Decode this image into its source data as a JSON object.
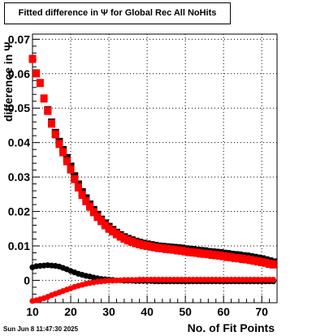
{
  "chart_data": {
    "type": "scatter",
    "title": "Fitted difference in  Ψ  for Global Rec All NoHits",
    "xlabel": "No. of Fit Points",
    "ylabel": "difference in  Ψ",
    "xlim": [
      10,
      74
    ],
    "ylim": [
      -0.0065,
      0.0715
    ],
    "grid": true,
    "x_ticks": [
      10,
      20,
      30,
      40,
      50,
      60,
      70
    ],
    "y_ticks": [
      0,
      0.01,
      0.02,
      0.03,
      0.04,
      0.05,
      0.06,
      0.07
    ],
    "x_tick_labels": [
      "10",
      "20",
      "30",
      "40",
      "50",
      "60",
      "70"
    ],
    "y_tick_labels": [
      "0",
      "0.01",
      "0.02",
      "0.03",
      "0.04",
      "0.05",
      "0.06",
      "0.07"
    ],
    "x": [
      10,
      11,
      12,
      13,
      14,
      15,
      16,
      17,
      18,
      19,
      20,
      21,
      22,
      23,
      24,
      25,
      26,
      27,
      28,
      29,
      30,
      31,
      32,
      33,
      34,
      35,
      36,
      37,
      38,
      39,
      40,
      41,
      42,
      43,
      44,
      45,
      46,
      47,
      48,
      49,
      50,
      51,
      52,
      53,
      54,
      55,
      56,
      57,
      58,
      59,
      60,
      61,
      62,
      63,
      64,
      65,
      66,
      67,
      68,
      69,
      70,
      71,
      72,
      73
    ],
    "series": [
      {
        "color": "#ff0000",
        "marker": "square",
        "values": [
          0.0643,
          0.0601,
          0.0573,
          0.0528,
          0.0492,
          0.0455,
          0.0424,
          0.0396,
          0.0372,
          0.0346,
          0.0322,
          0.0294,
          0.027,
          0.0248,
          0.023,
          0.0214,
          0.0198,
          0.0184,
          0.0172,
          0.016,
          0.015,
          0.0142,
          0.0134,
          0.0127,
          0.0121,
          0.0116,
          0.0112,
          0.0108,
          0.0105,
          0.0102,
          0.01,
          0.0098,
          0.0096,
          0.0094,
          0.0093,
          0.0091,
          0.009,
          0.0089,
          0.0087,
          0.0086,
          0.0084,
          0.0082,
          0.0081,
          0.008,
          0.0078,
          0.0077,
          0.0076,
          0.0074,
          0.0073,
          0.0072,
          0.007,
          0.0068,
          0.0067,
          0.0065,
          0.0064,
          0.0062,
          0.0061,
          0.0059,
          0.0057,
          0.0055,
          0.0053,
          0.0051,
          0.0048,
          0.0046
        ]
      },
      {
        "color": "#000000",
        "marker": "square",
        "values": [
          null,
          null,
          null,
          null,
          0.0494,
          0.0458,
          0.0428,
          0.0402,
          0.0378,
          0.0355,
          0.033,
          0.0302,
          0.0278,
          0.0256,
          0.0238,
          0.022,
          0.0204,
          0.019,
          0.0176,
          0.0165,
          0.0155,
          0.0146,
          0.0138,
          0.0131,
          0.0125,
          0.012,
          0.0116,
          0.0112,
          0.0109,
          0.0106,
          0.0104,
          0.0102,
          0.01,
          0.0098,
          0.0097,
          0.0096,
          0.0095,
          0.0094,
          0.0093,
          0.0092,
          0.009,
          0.0089,
          0.0088,
          0.0086,
          0.0085,
          0.0084,
          0.0082,
          0.0081,
          0.008,
          0.0079,
          0.0077,
          0.0076,
          0.0074,
          0.0073,
          0.0072,
          0.007,
          0.0069,
          0.0067,
          0.0065,
          0.0063,
          0.0061,
          0.0058,
          0.0055,
          0.0052
        ]
      },
      {
        "color": "#000000",
        "marker": "circle",
        "values": [
          0.0038,
          0.0041,
          0.0042,
          0.0043,
          0.0044,
          0.0043,
          0.0042,
          0.004,
          0.0036,
          0.0032,
          0.0027,
          0.0023,
          0.0019,
          0.0016,
          0.0013,
          0.0011,
          0.0008,
          0.0006,
          0.0004,
          0.0003,
          0.0002,
          0.0001,
          0.0,
          0.0,
          -0.0001,
          -0.0001,
          -0.0001,
          -0.0002,
          -0.0002,
          -0.0002,
          -0.0002,
          -0.0002,
          -0.0003,
          -0.0003,
          -0.0003,
          -0.0003,
          -0.0003,
          -0.0003,
          -0.0003,
          -0.0003,
          -0.0003,
          -0.0003,
          -0.0003,
          -0.0003,
          -0.0003,
          -0.0003,
          -0.0003,
          -0.0003,
          -0.0003,
          -0.0003,
          -0.0003,
          -0.0003,
          -0.0003,
          -0.0003,
          -0.0003,
          -0.0003,
          -0.0003,
          -0.0003,
          -0.0003,
          -0.0003,
          -0.0003,
          -0.0003,
          -0.0003,
          -0.0003
        ]
      },
      {
        "color": "#ff0000",
        "marker": "circle",
        "values": [
          -0.006,
          -0.0058,
          -0.0055,
          -0.0052,
          -0.0048,
          -0.0043,
          -0.0039,
          -0.0035,
          -0.0031,
          -0.0027,
          -0.0023,
          -0.0019,
          -0.0016,
          -0.0013,
          -0.001,
          -0.0008,
          -0.0006,
          -0.0004,
          -0.0003,
          -0.0002,
          -0.0001,
          -0.0001,
          0.0,
          0.0,
          0.0001,
          0.0001,
          0.0001,
          0.0001,
          0.0002,
          0.0002,
          0.0002,
          0.0002,
          0.0002,
          0.0002,
          0.0002,
          0.0002,
          0.0002,
          0.0002,
          0.0002,
          0.0002,
          0.0002,
          0.0002,
          0.0002,
          0.0002,
          0.0002,
          0.0002,
          0.0002,
          0.0002,
          0.0002,
          0.0002,
          0.0002,
          0.0002,
          0.0002,
          0.0002,
          0.0002,
          0.0002,
          0.0002,
          0.0002,
          0.0002,
          0.0002,
          0.0002,
          0.0002,
          0.0002,
          0.0002
        ]
      }
    ]
  },
  "footer": {
    "timestamp": "Sun Jun  8 11:47:30 2025"
  }
}
